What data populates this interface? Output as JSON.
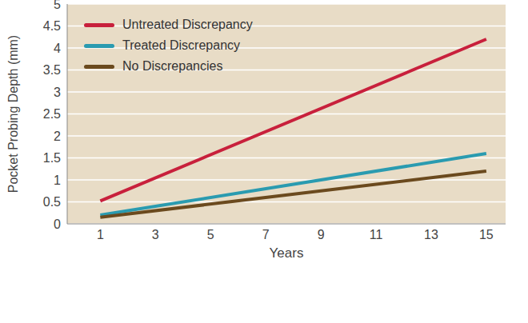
{
  "chart_data": {
    "type": "line",
    "x_label": "Years",
    "y_label": "Pocket Probing Depth (mm)",
    "x": [
      1,
      15
    ],
    "xlim": [
      -0.2,
      15.7
    ],
    "xticks": [
      1,
      3,
      5,
      7,
      9,
      11,
      13,
      15
    ],
    "ylim": [
      0,
      5
    ],
    "yticks": [
      0,
      0.5,
      1,
      1.5,
      2,
      2.5,
      3,
      3.5,
      4,
      4.5,
      5
    ],
    "grid": true,
    "legend": "upper left",
    "series": [
      {
        "name": "Untreated Discrepancy",
        "color": "#c8203c",
        "values": [
          0.52,
          4.2
        ]
      },
      {
        "name": "Treated Discrepancy",
        "color": "#2a9bb0",
        "values": [
          0.2,
          1.6
        ]
      },
      {
        "name": "No Discrepancies",
        "color": "#6b4a1e",
        "values": [
          0.15,
          1.2
        ]
      }
    ]
  }
}
